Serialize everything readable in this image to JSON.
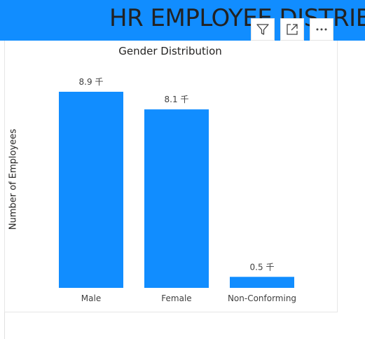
{
  "banner": {
    "title": "HR EMPLOYEE DISTRIB",
    "color": "#118dff"
  },
  "toolbar": {
    "icons": [
      "filter-icon",
      "focus-mode-icon",
      "more-options-icon"
    ]
  },
  "chart_data": {
    "type": "bar",
    "title": "Gender Distribution",
    "xlabel": "",
    "ylabel": "Number of Employees",
    "categories": [
      "Male",
      "Female",
      "Non-Conforming"
    ],
    "values": [
      8.9,
      8.1,
      0.5
    ],
    "data_labels": [
      "8.9 千",
      "8.1 千",
      "0.5 千"
    ],
    "unit": "千",
    "ylim": [
      0,
      8.9
    ],
    "bar_color": "#118dff",
    "grid": false,
    "legend": "none"
  }
}
